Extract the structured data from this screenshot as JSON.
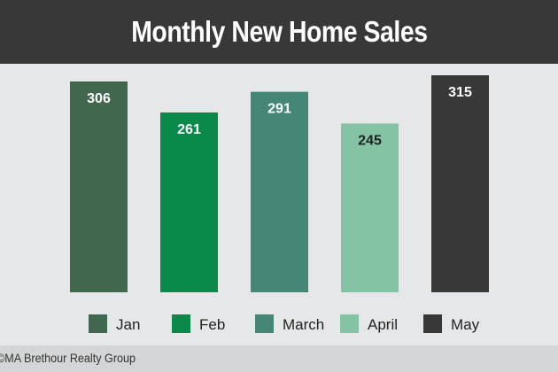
{
  "chart_data": {
    "type": "bar",
    "title": "Monthly New Home Sales",
    "categories": [
      "Jan",
      "Feb",
      "March",
      "April",
      "May"
    ],
    "values": [
      306,
      261,
      291,
      245,
      315
    ],
    "colors": [
      "#42674f",
      "#0a8a4a",
      "#468677",
      "#85c3a5",
      "#383838"
    ],
    "label_colors": [
      "#ffffff",
      "#ffffff",
      "#ffffff",
      "#222222",
      "#ffffff"
    ],
    "xlabel": "",
    "ylabel": "",
    "ylim": [
      0,
      315
    ],
    "grid": false,
    "legend": "bottom"
  },
  "footer": {
    "credit": "©MA Brethour Realty Group"
  }
}
